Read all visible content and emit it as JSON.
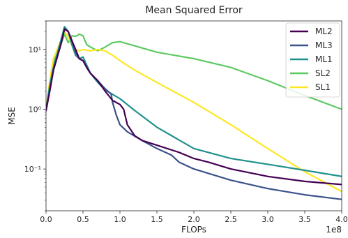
{
  "chart_data": {
    "type": "line",
    "title": "Mean Squared Error",
    "xlabel": "FLOPs",
    "ylabel": "MSE",
    "x_offset_label": "1e8",
    "x_scale": "linear",
    "y_scale": "log",
    "xlim": [
      0,
      4.0
    ],
    "ylim": [
      0.02,
      30
    ],
    "x_ticks": [
      0.0,
      0.5,
      1.0,
      1.5,
      2.0,
      2.5,
      3.0,
      3.5,
      4.0
    ],
    "x_tick_labels": [
      "0.0",
      "0.5",
      "1.0",
      "1.5",
      "2.0",
      "2.5",
      "3.0",
      "3.5",
      "4.0"
    ],
    "y_ticks": [
      0.1,
      1,
      10
    ],
    "y_tick_labels": [
      "10⁻¹",
      "10⁰",
      "10¹"
    ],
    "grid": false,
    "legend_position": "top-right",
    "series": [
      {
        "name": "ML2",
        "color": "#440154",
        "x": [
          0.0,
          0.05,
          0.1,
          0.2,
          0.25,
          0.3,
          0.35,
          0.4,
          0.45,
          0.5,
          0.55,
          0.6,
          0.7,
          0.8,
          0.9,
          1.0,
          1.05,
          1.1,
          1.2,
          1.3,
          1.5,
          1.8,
          2.0,
          2.2,
          2.5,
          3.0,
          3.5,
          4.0
        ],
        "y": [
          0.95,
          2.0,
          4.5,
          12.0,
          22.0,
          20.0,
          14.0,
          10.0,
          7.0,
          6.5,
          5.0,
          4.0,
          3.0,
          2.0,
          1.4,
          1.2,
          1.0,
          0.55,
          0.36,
          0.3,
          0.25,
          0.19,
          0.15,
          0.13,
          0.1,
          0.075,
          0.062,
          0.055
        ]
      },
      {
        "name": "ML3",
        "color": "#3b528b",
        "x": [
          0.0,
          0.05,
          0.1,
          0.2,
          0.25,
          0.3,
          0.35,
          0.4,
          0.45,
          0.5,
          0.55,
          0.6,
          0.7,
          0.8,
          0.88,
          0.9,
          0.95,
          1.0,
          1.1,
          1.3,
          1.5,
          1.7,
          1.8,
          2.0,
          2.5,
          3.0,
          3.5,
          4.0
        ],
        "y": [
          0.95,
          2.0,
          4.5,
          12.0,
          22.0,
          20.0,
          14.0,
          9.0,
          7.0,
          6.5,
          5.0,
          4.0,
          3.0,
          2.2,
          1.8,
          1.3,
          0.8,
          0.55,
          0.42,
          0.3,
          0.22,
          0.17,
          0.13,
          0.1,
          0.065,
          0.047,
          0.037,
          0.031
        ]
      },
      {
        "name": "ML1",
        "color": "#21918c",
        "x": [
          0.0,
          0.05,
          0.1,
          0.2,
          0.25,
          0.3,
          0.35,
          0.4,
          0.45,
          0.5,
          0.55,
          0.6,
          0.7,
          0.8,
          1.0,
          1.2,
          1.5,
          1.7,
          2.0,
          2.5,
          3.0,
          3.5,
          4.0
        ],
        "y": [
          0.95,
          2.5,
          5.0,
          14.0,
          24.0,
          20.0,
          12.0,
          8.0,
          7.0,
          7.5,
          5.5,
          4.0,
          2.8,
          2.1,
          1.5,
          0.95,
          0.5,
          0.36,
          0.22,
          0.15,
          0.12,
          0.095,
          0.075
        ]
      },
      {
        "name": "SL2",
        "color": "#5ec962",
        "x": [
          0.0,
          0.05,
          0.1,
          0.2,
          0.25,
          0.3,
          0.35,
          0.4,
          0.45,
          0.5,
          0.55,
          0.6,
          0.7,
          0.8,
          0.9,
          1.0,
          1.2,
          1.5,
          2.0,
          2.5,
          3.0,
          3.5,
          4.0
        ],
        "y": [
          0.95,
          2.5,
          6.0,
          12.0,
          18.0,
          13.0,
          17.0,
          16.5,
          18.0,
          17.0,
          12.0,
          11.0,
          9.5,
          11.0,
          13.0,
          13.5,
          11.5,
          9.0,
          7.0,
          5.0,
          3.0,
          1.7,
          1.0
        ]
      },
      {
        "name": "SL1",
        "color": "#fde725",
        "x": [
          0.0,
          0.05,
          0.1,
          0.2,
          0.25,
          0.3,
          0.35,
          0.4,
          0.45,
          0.5,
          0.6,
          0.7,
          0.8,
          0.9,
          1.0,
          1.2,
          1.5,
          2.0,
          2.5,
          3.0,
          3.5,
          4.0
        ],
        "y": [
          0.95,
          3.0,
          7.0,
          14.0,
          20.0,
          16.0,
          12.0,
          10.0,
          9.5,
          10.0,
          9.5,
          10.0,
          9.5,
          8.0,
          6.5,
          4.5,
          2.8,
          1.3,
          0.55,
          0.22,
          0.09,
          0.042
        ]
      }
    ]
  }
}
